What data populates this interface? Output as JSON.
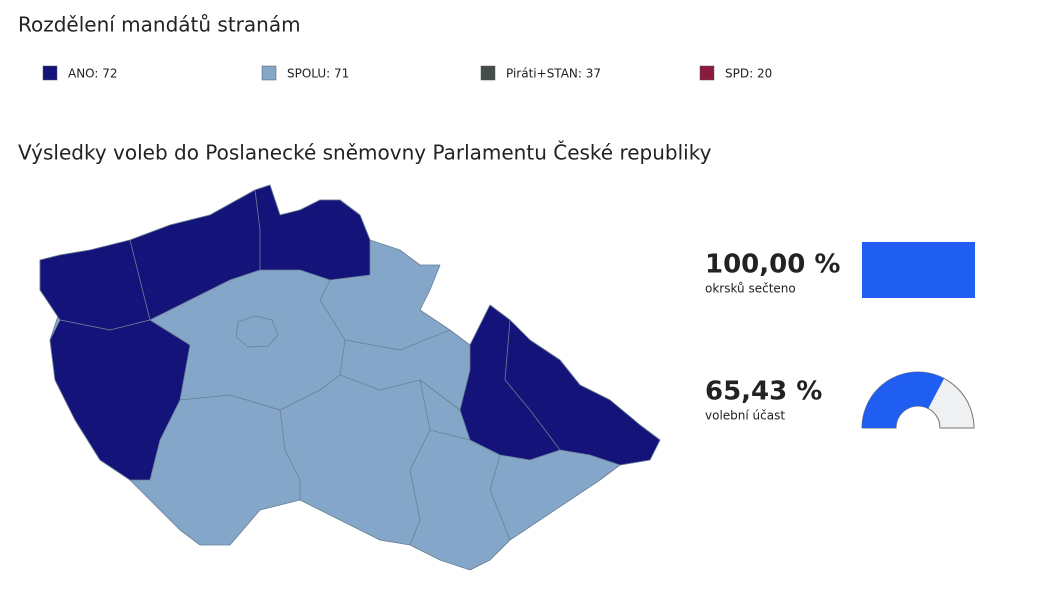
{
  "header": {
    "title": "Rozdělení mandátů stranám"
  },
  "legend": [
    {
      "label": "ANO: 72",
      "color": "#13137a"
    },
    {
      "label": "SPOLU: 71",
      "color": "#84a6c8"
    },
    {
      "label": "Piráti+STAN: 37",
      "color": "#454c4c"
    },
    {
      "label": "SPD: 20",
      "color": "#8b1a3c"
    }
  ],
  "map": {
    "title": "Výsledky voleb do Poslanecké sněmovny Parlamentu České republiky"
  },
  "stats": [
    {
      "value": 100,
      "label": "100,00 %",
      "caption": "okrsků sečteno",
      "kind": "bar",
      "color": "#1f5ef0"
    },
    {
      "value": 65.43,
      "label": "65,43 %",
      "caption": "volební účast",
      "kind": "gauge",
      "color": "#1f5ef0"
    }
  ]
}
